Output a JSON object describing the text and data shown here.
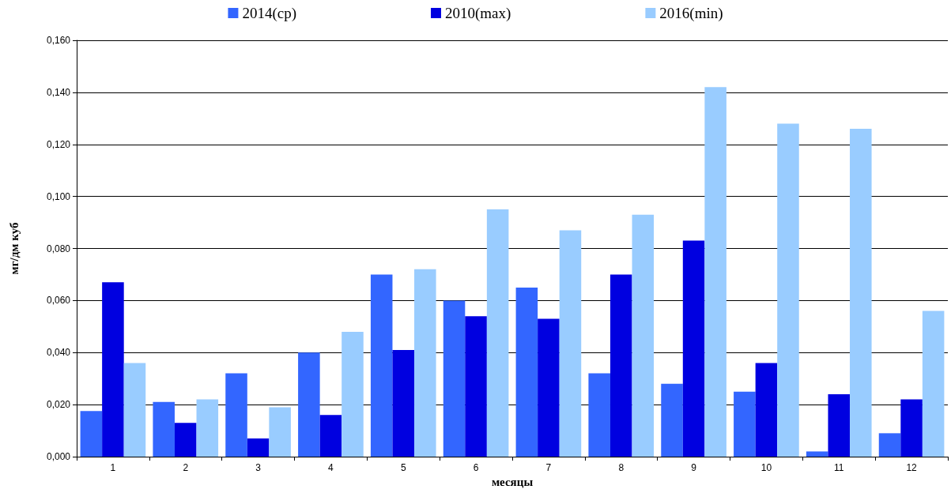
{
  "chart_data": {
    "type": "bar",
    "xlabel": "месяцы",
    "ylabel": "мг/дм куб",
    "categories": [
      "1",
      "2",
      "3",
      "4",
      "5",
      "6",
      "7",
      "8",
      "9",
      "10",
      "11",
      "12"
    ],
    "series": [
      {
        "name": "2014(ср)",
        "color": "#3366ff",
        "values": [
          0.0175,
          0.021,
          0.032,
          0.04,
          0.07,
          0.06,
          0.065,
          0.032,
          0.028,
          0.025,
          0.002,
          0.009
        ]
      },
      {
        "name": "2010(max)",
        "color": "#0000e0",
        "values": [
          0.067,
          0.013,
          0.007,
          0.016,
          0.041,
          0.054,
          0.053,
          0.07,
          0.083,
          0.036,
          0.024,
          0.022
        ]
      },
      {
        "name": "2016(min)",
        "color": "#99ccff",
        "values": [
          0.036,
          0.022,
          0.019,
          0.048,
          0.072,
          0.095,
          0.087,
          0.093,
          0.142,
          0.128,
          0.126,
          0.056
        ]
      }
    ],
    "ylim": [
      0,
      0.16
    ],
    "yticks": [
      {
        "value": 0,
        "label": "0,000"
      },
      {
        "value": 0.02,
        "label": "0,020"
      },
      {
        "value": 0.04,
        "label": "0,040"
      },
      {
        "value": 0.06,
        "label": "0,060"
      },
      {
        "value": 0.08,
        "label": "0,080"
      },
      {
        "value": 0.1,
        "label": "0,100"
      },
      {
        "value": 0.12,
        "label": "0,120"
      },
      {
        "value": 0.14,
        "label": "0,140"
      },
      {
        "value": 0.16,
        "label": "0,160"
      }
    ],
    "grid": "y",
    "legend": "top"
  }
}
